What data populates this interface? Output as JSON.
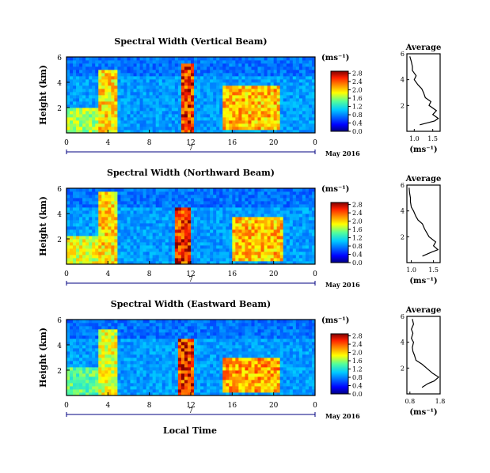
{
  "figure": {
    "xlabel": "Local Time",
    "date_label": "May 2016",
    "day_label": "7",
    "x_ticks": [
      "0",
      "4",
      "8",
      "12",
      "16",
      "20",
      "0"
    ]
  },
  "chart_data": [
    {
      "type": "heatmap",
      "title": "Spectral Width (Vertical Beam)",
      "ylabel": "Height (km)",
      "y_ticks": [
        "2",
        "4",
        "6"
      ],
      "xlim": [
        0,
        24
      ],
      "ylim": [
        0,
        6
      ],
      "colorbar": {
        "unit": "(ms⁻¹)",
        "ticks": [
          "0.0",
          "0.4",
          "0.8",
          "1.2",
          "1.6",
          "2.0",
          "2.4",
          "2.8"
        ],
        "range": [
          0,
          2.9
        ]
      },
      "features": [
        {
          "x": [
            3.0,
            5.0
          ],
          "y": [
            0,
            5.0
          ],
          "value": 2.2
        },
        {
          "x": [
            11.0,
            12.2
          ],
          "y": [
            0,
            5.6
          ],
          "value": 2.8
        },
        {
          "x": [
            15.0,
            20.5
          ],
          "y": [
            0.3,
            3.8
          ],
          "value": 2.3
        },
        {
          "x": [
            0,
            4.0
          ],
          "y": [
            0,
            2.0
          ],
          "value": 1.8
        }
      ],
      "average": {
        "title": "Average",
        "xlabel": "(ms⁻¹)",
        "x_ticks": [
          "1.0",
          "1.5"
        ],
        "y_ticks": [
          "2",
          "4",
          "6"
        ],
        "xlim": [
          0.8,
          1.7
        ],
        "ylim": [
          0,
          6
        ],
        "height": [
          0.5,
          0.8,
          1.0,
          1.3,
          1.6,
          2.0,
          2.3,
          2.6,
          3.0,
          3.3,
          3.6,
          4.0,
          4.3,
          4.7,
          5.0,
          5.4,
          5.8
        ],
        "value": [
          1.15,
          1.55,
          1.65,
          1.5,
          1.6,
          1.4,
          1.45,
          1.3,
          1.25,
          1.2,
          1.1,
          1.0,
          1.05,
          0.95,
          0.95,
          0.92,
          0.88
        ]
      }
    },
    {
      "type": "heatmap",
      "title": "Spectral Width (Northward Beam)",
      "ylabel": "Height (km)",
      "y_ticks": [
        "2",
        "4",
        "6"
      ],
      "xlim": [
        0,
        24
      ],
      "ylim": [
        0,
        6
      ],
      "colorbar": {
        "unit": "(ms⁻¹)",
        "ticks": [
          "0.0",
          "0.4",
          "0.8",
          "1.2",
          "1.6",
          "2.0",
          "2.4",
          "2.8"
        ],
        "range": [
          0,
          2.9
        ]
      },
      "features": [
        {
          "x": [
            3.0,
            5.0
          ],
          "y": [
            0,
            5.8
          ],
          "value": 2.2
        },
        {
          "x": [
            10.5,
            12.0
          ],
          "y": [
            0,
            4.5
          ],
          "value": 2.8
        },
        {
          "x": [
            16.0,
            21.0
          ],
          "y": [
            0.2,
            3.8
          ],
          "value": 2.3
        },
        {
          "x": [
            0,
            3.0
          ],
          "y": [
            0,
            2.2
          ],
          "value": 2.0
        }
      ],
      "average": {
        "title": "Average",
        "xlabel": "(ms⁻¹)",
        "x_ticks": [
          "1.0",
          "1.5"
        ],
        "y_ticks": [
          "2",
          "4",
          "6"
        ],
        "xlim": [
          0.9,
          1.65
        ],
        "ylim": [
          0,
          6
        ],
        "height": [
          0.5,
          0.8,
          1.0,
          1.3,
          1.6,
          2.0,
          2.3,
          2.6,
          3.0,
          3.3,
          3.6,
          4.0,
          4.3,
          4.7,
          5.0,
          5.4,
          5.8
        ],
        "value": [
          1.25,
          1.45,
          1.6,
          1.5,
          1.55,
          1.4,
          1.35,
          1.3,
          1.25,
          1.15,
          1.1,
          1.05,
          1.0,
          0.98,
          0.98,
          0.96,
          0.95
        ]
      }
    },
    {
      "type": "heatmap",
      "title": "Spectral Width (Eastward Beam)",
      "ylabel": "Height (km)",
      "y_ticks": [
        "2",
        "4",
        "6"
      ],
      "xlim": [
        0,
        24
      ],
      "ylim": [
        0,
        6
      ],
      "colorbar": {
        "unit": "(ms⁻¹)",
        "ticks": [
          "0.0",
          "0.4",
          "0.8",
          "1.2",
          "1.6",
          "2.0",
          "2.4",
          "2.8"
        ],
        "range": [
          0,
          2.9
        ]
      },
      "features": [
        {
          "x": [
            3.0,
            5.0
          ],
          "y": [
            0,
            5.2
          ],
          "value": 2.0
        },
        {
          "x": [
            10.8,
            12.2
          ],
          "y": [
            0,
            4.5
          ],
          "value": 2.8
        },
        {
          "x": [
            15.0,
            20.5
          ],
          "y": [
            0.2,
            3.0
          ],
          "value": 2.4
        },
        {
          "x": [
            0,
            3.0
          ],
          "y": [
            0,
            2.2
          ],
          "value": 1.6
        }
      ],
      "average": {
        "title": "Average",
        "xlabel": "(ms⁻¹)",
        "x_ticks": [
          "0.8",
          "1.8"
        ],
        "y_ticks": [
          "2",
          "4",
          "6"
        ],
        "xlim": [
          0.7,
          1.8
        ],
        "ylim": [
          0,
          6
        ],
        "height": [
          0.5,
          0.8,
          1.0,
          1.3,
          1.6,
          2.0,
          2.3,
          2.6,
          3.0,
          3.3,
          3.6,
          4.0,
          4.3,
          4.7,
          5.0,
          5.4,
          5.8
        ],
        "value": [
          1.2,
          1.4,
          1.6,
          1.75,
          1.55,
          1.35,
          1.2,
          1.0,
          0.95,
          0.9,
          0.88,
          0.92,
          0.85,
          0.9,
          0.85,
          0.92,
          0.88
        ]
      }
    }
  ]
}
